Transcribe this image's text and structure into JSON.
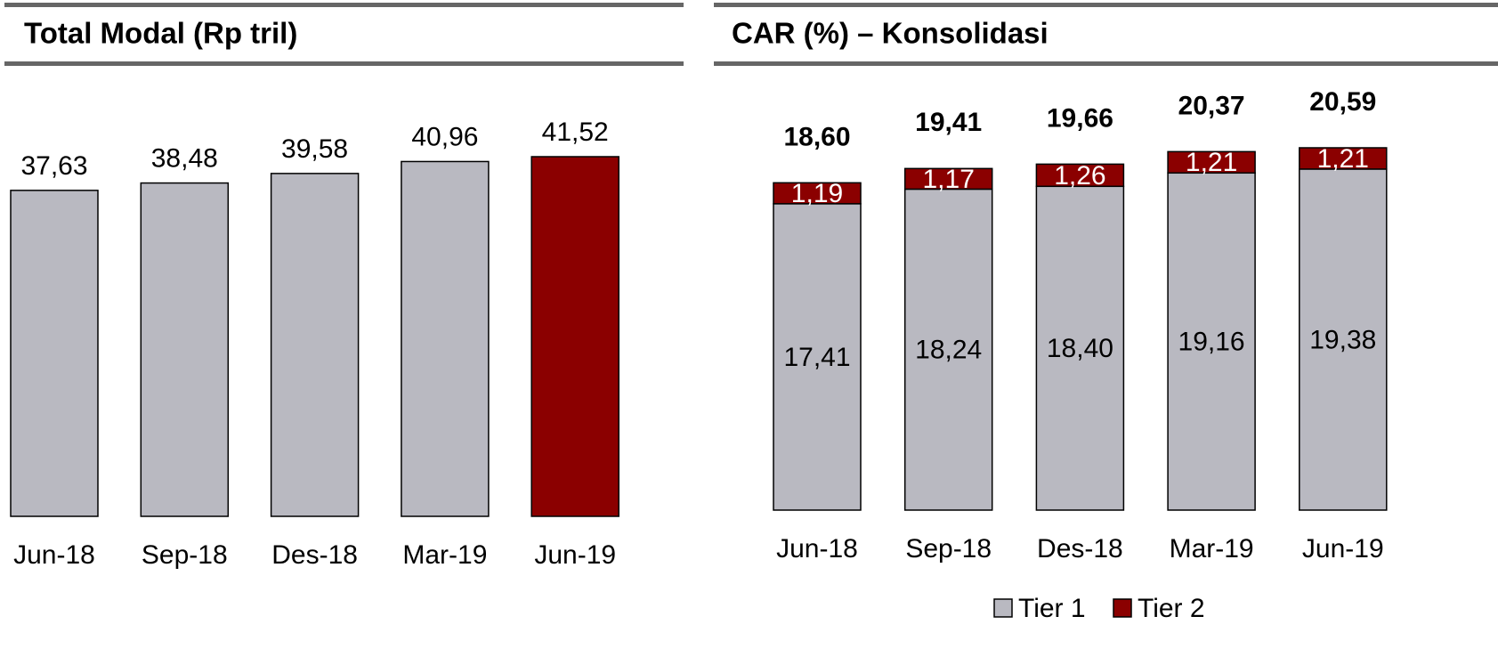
{
  "chart_data": [
    {
      "type": "bar",
      "title": "Total Modal (Rp tril)",
      "categories": [
        "Jun-18",
        "Sep-18",
        "Des-18",
        "Mar-19",
        "Jun-19"
      ],
      "values": [
        37.63,
        38.48,
        39.58,
        40.96,
        41.52
      ],
      "value_labels": [
        "37,63",
        "38,48",
        "39,58",
        "40,96",
        "41,52"
      ],
      "colors": [
        "#b9b9c1",
        "#b9b9c1",
        "#b9b9c1",
        "#b9b9c1",
        "#8b0000"
      ]
    },
    {
      "type": "stacked_bar",
      "title": "CAR (%) – Konsolidasi",
      "categories": [
        "Jun-18",
        "Sep-18",
        "Des-18",
        "Mar-19",
        "Jun-19"
      ],
      "series": [
        {
          "name": "Tier 1",
          "color": "#b9b9c1",
          "values": [
            17.41,
            18.24,
            18.4,
            19.16,
            19.38
          ],
          "value_labels": [
            "17,41",
            "18,24",
            "18,40",
            "19,16",
            "19,38"
          ]
        },
        {
          "name": "Tier 2",
          "color": "#8b0000",
          "values": [
            1.19,
            1.17,
            1.26,
            1.21,
            1.21
          ],
          "value_labels": [
            "1,19",
            "1,17",
            "1,26",
            "1,21",
            "1,21"
          ]
        }
      ],
      "totals": [
        18.6,
        19.41,
        19.66,
        20.37,
        20.59
      ],
      "total_labels": [
        "18,60",
        "19,41",
        "19,66",
        "20,37",
        "20,59"
      ]
    }
  ]
}
